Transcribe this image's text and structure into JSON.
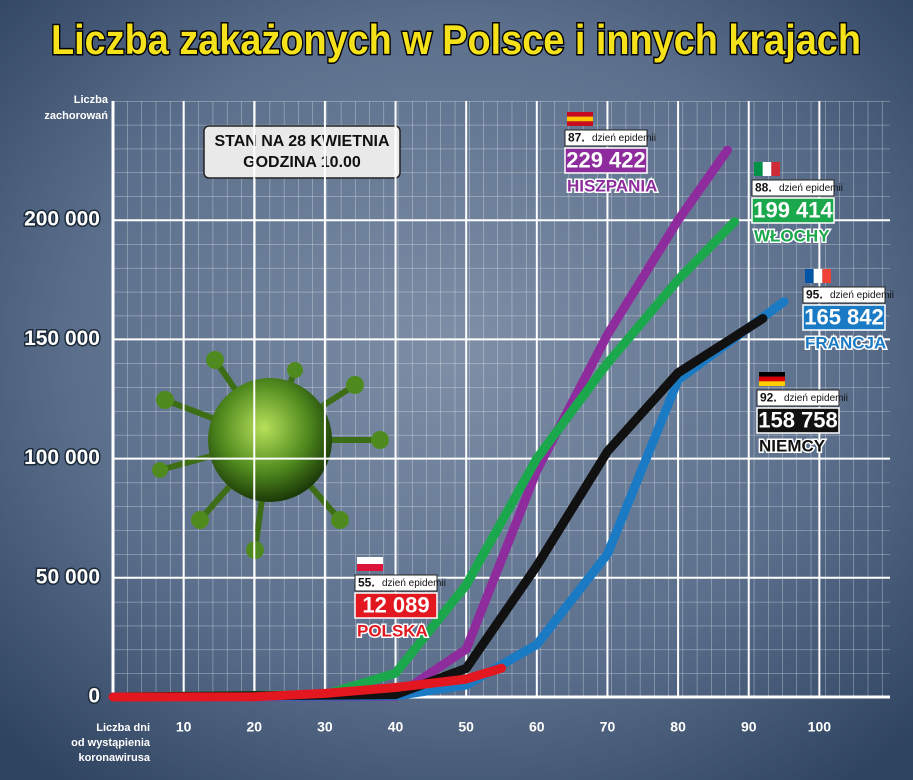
{
  "chart_data": {
    "type": "line",
    "title": "Liczba zakażonych w Polsce i innych krajach",
    "ylabel": [
      "Liczba",
      "zachorowań"
    ],
    "xlabel": [
      "Liczba dni",
      "od wystąpienia",
      "koronawirusa"
    ],
    "annotation": [
      "STAN NA 28 KWIETNIA",
      "GODZINA 10.00"
    ],
    "xlim": [
      0,
      110
    ],
    "ylim": [
      0,
      250000
    ],
    "xticks": [
      10,
      20,
      30,
      40,
      50,
      60,
      70,
      80,
      90,
      100
    ],
    "yticks": [
      0,
      {
        "value": 50000,
        "label": "50 000"
      },
      {
        "value": 100000,
        "label": "100 000"
      },
      {
        "value": 150000,
        "label": "150 000"
      },
      {
        "value": 200000,
        "label": "200 000"
      }
    ],
    "grid": true,
    "series": [
      {
        "name": "HISZPANIA",
        "color": "#8e2c9e",
        "day_label": "87.",
        "caption": "dzień epidemii",
        "x": [
          0,
          40,
          50,
          60,
          70,
          80,
          87
        ],
        "values": [
          0,
          200,
          20000,
          95000,
          152000,
          200000,
          229422
        ],
        "value_labels": [
          null,
          null,
          null,
          null,
          null,
          null,
          "229 422"
        ]
      },
      {
        "name": "WŁOCHY",
        "color": "#1ba84c",
        "day_label": "88.",
        "caption": "dzień epidemii",
        "x": [
          0,
          30,
          40,
          50,
          60,
          70,
          80,
          88
        ],
        "values": [
          0,
          1000,
          10000,
          47000,
          100000,
          140000,
          175000,
          199414
        ],
        "value_labels": [
          null,
          null,
          null,
          null,
          null,
          null,
          null,
          "199 414"
        ]
      },
      {
        "name": "FRANCJA",
        "color": "#1b7ac4",
        "day_label": "95.",
        "caption": "dzień epidemii",
        "x": [
          0,
          40,
          50,
          60,
          70,
          80,
          95
        ],
        "values": [
          0,
          500,
          5000,
          22000,
          60000,
          133000,
          165842
        ],
        "value_labels": [
          null,
          null,
          null,
          null,
          null,
          null,
          "165 842"
        ]
      },
      {
        "name": "NIEMCY",
        "color": "#111111",
        "day_label": "92.",
        "caption": "dzień epidemii",
        "x": [
          0,
          40,
          50,
          60,
          70,
          80,
          92
        ],
        "values": [
          0,
          1000,
          12000,
          55000,
          103000,
          136000,
          158758
        ],
        "value_labels": [
          null,
          null,
          null,
          null,
          null,
          null,
          "158 758"
        ]
      },
      {
        "name": "POLSKA",
        "color": "#e3171f",
        "day_label": "55.",
        "caption": "dzień epidemii",
        "x": [
          0,
          20,
          30,
          40,
          50,
          55
        ],
        "values": [
          0,
          100,
          1500,
          4000,
          7500,
          12089
        ],
        "value_labels": [
          null,
          null,
          null,
          null,
          null,
          "12 089"
        ]
      }
    ]
  }
}
